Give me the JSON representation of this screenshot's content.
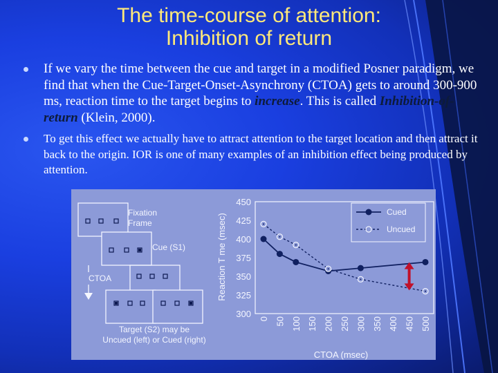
{
  "slide": {
    "title_line1": "The time-course of attention:",
    "title_line2": "Inhibition of return"
  },
  "bullets": [
    {
      "parts": [
        "If we vary the time between the cue and target in a modified Posner paradigm, we find that when the Cue-Target-Onset-Asynchrony (CTOA) gets to around 300-900 ms, reaction time to the target begins to ",
        "increase",
        ".  This is called ",
        "Inhibition-of-return",
        " (Klein, 2000)."
      ]
    },
    {
      "text": "To get this effect we actually have to attract attention to the target location and then attract it back to the origin.  IOR is one of many examples of an inhibition effect being produced by attention."
    }
  ],
  "diagram": {
    "fixation_label": "Fixation\nFrame",
    "cue_label": "Cue (S1)",
    "ctoa_label": "CTOA",
    "target_label_line1": "Target (S2) may be",
    "target_label_line2": "Uncued (left) or Cued (right)"
  },
  "chart_data": {
    "type": "line",
    "x": [
      0,
      50,
      100,
      150,
      200,
      250,
      300,
      350,
      400,
      450,
      500
    ],
    "x_tick_labels": [
      "0",
      "50",
      "100",
      "150",
      "200",
      "250",
      "300",
      "350",
      "400",
      "450",
      "500"
    ],
    "y_ticks": [
      300,
      325,
      350,
      375,
      400,
      425,
      450
    ],
    "xlabel": "CTOA (msec)",
    "ylabel": "Reaction T me (msec)",
    "xlim": [
      0,
      500
    ],
    "ylim": [
      300,
      450
    ],
    "legend_position": "top-right",
    "series": [
      {
        "name": "Cued",
        "style": "solid",
        "marker": "filled-circle",
        "points": [
          [
            0,
            400
          ],
          [
            50,
            380
          ],
          [
            100,
            369
          ],
          [
            200,
            357
          ],
          [
            300,
            361
          ],
          [
            500,
            369
          ]
        ]
      },
      {
        "name": "Uncued",
        "style": "dashed",
        "marker": "open-circle-dot",
        "points": [
          [
            0,
            420
          ],
          [
            50,
            403
          ],
          [
            100,
            392
          ],
          [
            200,
            360
          ],
          [
            300,
            346
          ],
          [
            500,
            330
          ]
        ]
      }
    ],
    "colors": {
      "cued": "#102060",
      "uncued": "#102060",
      "arrow": "#c0102a"
    }
  }
}
